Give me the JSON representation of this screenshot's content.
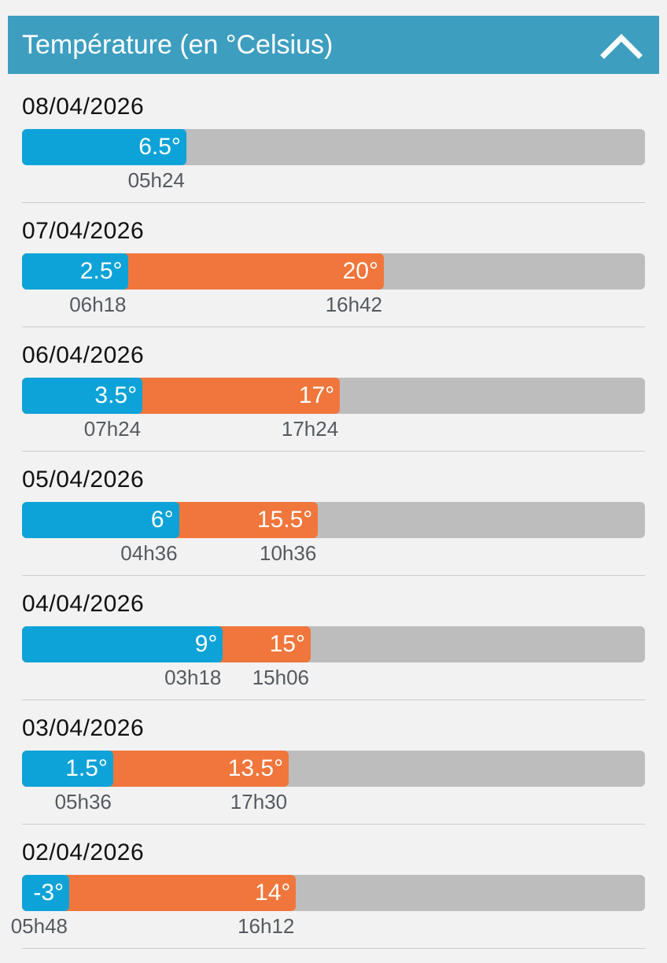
{
  "panel": {
    "title": "Température (en °Celsius)",
    "collapse_icon": "chevron-up-icon"
  },
  "colors": {
    "header_bg": "#3d9ec0",
    "min_bar": "#0da3d8",
    "max_bar": "#f0763b",
    "track": "#bdbdbd",
    "background": "#f2f2f2"
  },
  "days": [
    {
      "date": "08/04/2026",
      "min_label": "6.5°",
      "min_value": 6.5,
      "min_time": "05h24",
      "max_label": "",
      "max_value": null,
      "max_time": ""
    },
    {
      "date": "07/04/2026",
      "min_label": "2.5°",
      "min_value": 2.5,
      "min_time": "06h18",
      "max_label": "20°",
      "max_value": 20,
      "max_time": "16h42"
    },
    {
      "date": "06/04/2026",
      "min_label": "3.5°",
      "min_value": 3.5,
      "min_time": "07h24",
      "max_label": "17°",
      "max_value": 17,
      "max_time": "17h24"
    },
    {
      "date": "05/04/2026",
      "min_label": "6°",
      "min_value": 6,
      "min_time": "04h36",
      "max_label": "15.5°",
      "max_value": 15.5,
      "max_time": "10h36"
    },
    {
      "date": "04/04/2026",
      "min_label": "9°",
      "min_value": 9,
      "min_time": "03h18",
      "max_label": "15°",
      "max_value": 15,
      "max_time": "15h06"
    },
    {
      "date": "03/04/2026",
      "min_label": "1.5°",
      "min_value": 1.5,
      "min_time": "05h36",
      "max_label": "13.5°",
      "max_value": 13.5,
      "max_time": "17h30"
    },
    {
      "date": "02/04/2026",
      "min_label": "-3°",
      "min_value": -3,
      "min_time": "05h48",
      "max_label": "14°",
      "max_value": 14,
      "max_time": "16h12"
    }
  ]
}
